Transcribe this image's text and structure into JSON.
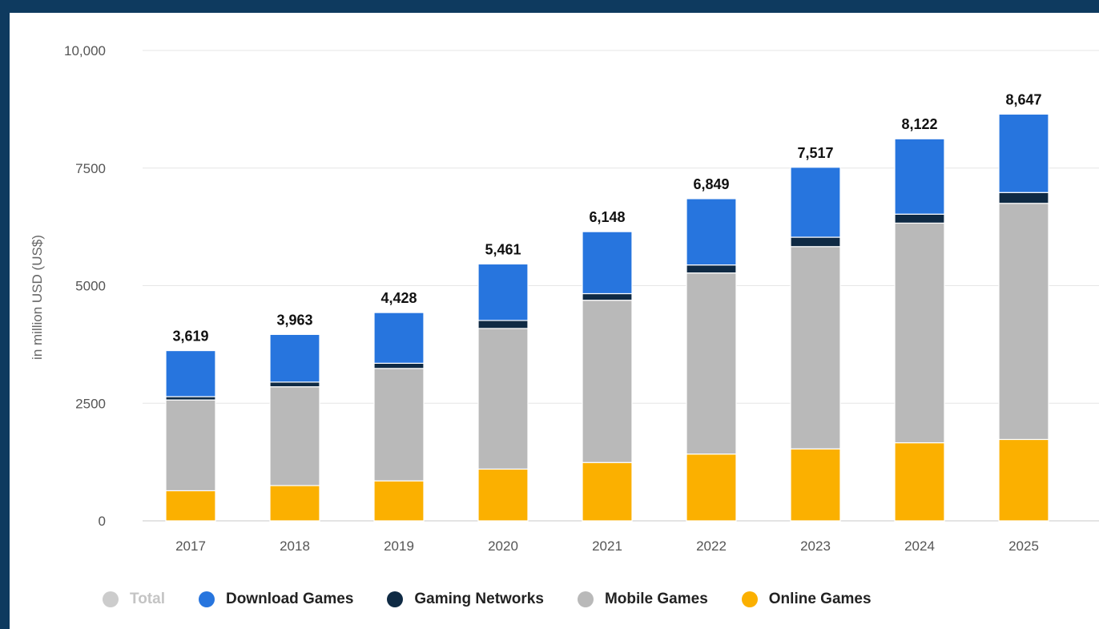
{
  "chart_data": {
    "type": "bar",
    "stacked": true,
    "ylabel": "in million USD (US$)",
    "ylim": [
      0,
      10000
    ],
    "yticks": [
      {
        "value": 0,
        "label": "0"
      },
      {
        "value": 2500,
        "label": "2500"
      },
      {
        "value": 5000,
        "label": "5000"
      },
      {
        "value": 7500,
        "label": "7500"
      },
      {
        "value": 10000,
        "label": "10,000"
      }
    ],
    "grid": true,
    "legend_position": "bottom",
    "categories": [
      "2017",
      "2018",
      "2019",
      "2020",
      "2021",
      "2022",
      "2023",
      "2024",
      "2025"
    ],
    "totals": [
      3619,
      3963,
      4428,
      5461,
      6148,
      6849,
      7517,
      8122,
      8647
    ],
    "total_labels": [
      "3,619",
      "3,963",
      "4,428",
      "5,461",
      "6,148",
      "6,849",
      "7,517",
      "8,122",
      "8,647"
    ],
    "series": [
      {
        "name": "Online Games",
        "color": "#fbb000",
        "values": [
          640,
          750,
          850,
          1100,
          1240,
          1420,
          1530,
          1660,
          1730
        ]
      },
      {
        "name": "Mobile Games",
        "color": "#b9b9b9",
        "values": [
          1930,
          2100,
          2390,
          2990,
          3450,
          3850,
          4300,
          4670,
          5020
        ]
      },
      {
        "name": "Gaming Networks",
        "color": "#0f2a44",
        "values": [
          70,
          100,
          110,
          170,
          140,
          170,
          200,
          190,
          230
        ]
      },
      {
        "name": "Download Games",
        "color": "#2775de",
        "values": [
          979,
          1013,
          1078,
          1201,
          1318,
          1409,
          1487,
          1602,
          1667
        ]
      }
    ]
  },
  "legend": {
    "items": [
      {
        "label": "Total",
        "color": "#cccccc",
        "active": false
      },
      {
        "label": "Download Games",
        "color": "#2775de",
        "active": true
      },
      {
        "label": "Gaming Networks",
        "color": "#0f2a44",
        "active": true
      },
      {
        "label": "Mobile Games",
        "color": "#b9b9b9",
        "active": true
      },
      {
        "label": "Online Games",
        "color": "#fbb000",
        "active": true
      }
    ]
  }
}
